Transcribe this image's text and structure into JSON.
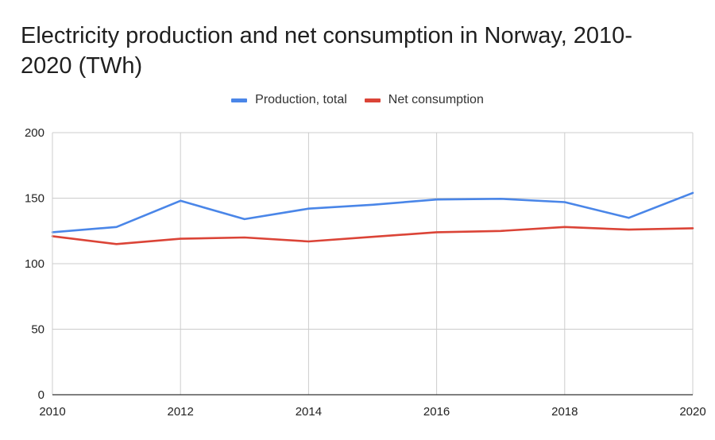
{
  "chart_data": {
    "type": "line",
    "title": "Electricity production and net consumption in Norway, 2010-2020 (TWh)",
    "x": [
      2010,
      2011,
      2012,
      2013,
      2014,
      2015,
      2016,
      2017,
      2018,
      2019,
      2020
    ],
    "x_tick_labels": [
      "2010",
      "2012",
      "2014",
      "2016",
      "2018",
      "2020"
    ],
    "y_tick_labels": [
      "0",
      "50",
      "100",
      "150",
      "200"
    ],
    "y_ticks": [
      0,
      50,
      100,
      150,
      200
    ],
    "x_ticks": [
      2010,
      2012,
      2014,
      2016,
      2018,
      2020
    ],
    "xlim": [
      2010,
      2020
    ],
    "ylim": [
      0,
      200
    ],
    "xlabel": "",
    "ylabel": "",
    "grid": true,
    "legend_position": "top-center",
    "series": [
      {
        "name": "Production, total",
        "color": "#4a86e8",
        "values": [
          124,
          128,
          148,
          134,
          142,
          145,
          149,
          149.5,
          147,
          135,
          154
        ]
      },
      {
        "name": "Net consumption",
        "color": "#db4437",
        "values": [
          121,
          115,
          119,
          120,
          117,
          120.5,
          124,
          125,
          128,
          126,
          127
        ]
      }
    ]
  }
}
